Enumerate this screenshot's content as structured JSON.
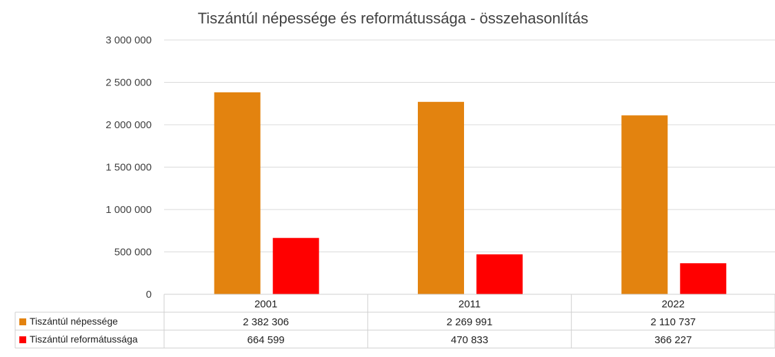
{
  "chart_data": {
    "type": "bar",
    "title": "Tiszántúl népessége és reformátussága - összehasonlítás",
    "categories": [
      "2001",
      "2011",
      "2022"
    ],
    "series": [
      {
        "name": "Tiszántúl népessége",
        "values": [
          2382306,
          2269991,
          2110737
        ],
        "labels": [
          "2 382 306",
          "2 269 991",
          "2 110 737"
        ],
        "color": "#E3830F"
      },
      {
        "name": "Tiszántúl reformátussága",
        "values": [
          664599,
          470833,
          366227
        ],
        "labels": [
          "664 599",
          "470 833",
          "366 227"
        ],
        "color": "#FF0000"
      }
    ],
    "ylim": [
      0,
      3000000
    ],
    "yticks": [
      {
        "value": 0,
        "label": "0"
      },
      {
        "value": 500000,
        "label": "500 000"
      },
      {
        "value": 1000000,
        "label": "1 000 000"
      },
      {
        "value": 1500000,
        "label": "1 500 000"
      },
      {
        "value": 2000000,
        "label": "2 000 000"
      },
      {
        "value": 2500000,
        "label": "2 500 000"
      },
      {
        "value": 3000000,
        "label": "3 000 000"
      }
    ],
    "grid": true,
    "legend": "data-table"
  }
}
